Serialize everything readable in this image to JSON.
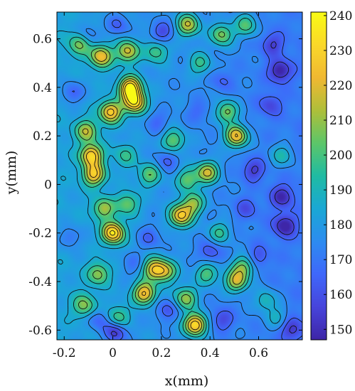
{
  "chart_data": {
    "type": "heatmap",
    "subtype": "filled-contour",
    "title": "",
    "xlabel": "x(mm)",
    "ylabel": "y(mm)",
    "xlim": [
      -0.23,
      0.78
    ],
    "ylim": [
      -0.64,
      0.71
    ],
    "xticks": [
      "-0.2",
      "0",
      "0.2",
      "0.4",
      "0.6"
    ],
    "xtick_values": [
      -0.2,
      0,
      0.2,
      0.4,
      0.6
    ],
    "yticks": [
      "0.6",
      "0.4",
      "0.2",
      "0",
      "-0.2",
      "-0.4",
      "-0.6"
    ],
    "ytick_values": [
      0.6,
      0.4,
      0.2,
      0,
      -0.2,
      -0.4,
      -0.6
    ],
    "colorbar": {
      "min": 147,
      "max": 241,
      "ticks": [
        "240",
        "230",
        "220",
        "210",
        "200",
        "190",
        "180",
        "170",
        "160",
        "150"
      ],
      "tick_values": [
        240,
        230,
        220,
        210,
        200,
        190,
        180,
        170,
        160,
        150
      ],
      "colormap": "parula"
    },
    "contour_levels": [
      155,
      165,
      175,
      185,
      195,
      205,
      215,
      225,
      235
    ],
    "baseline": 178,
    "peaks": [
      {
        "x": 0.07,
        "y": 0.4,
        "value": 240
      },
      {
        "x": 0.09,
        "y": 0.34,
        "value": 232
      },
      {
        "x": -0.01,
        "y": 0.3,
        "value": 228
      },
      {
        "x": -0.05,
        "y": 0.53,
        "value": 222
      },
      {
        "x": 0.06,
        "y": 0.55,
        "value": 218
      },
      {
        "x": -0.09,
        "y": 0.12,
        "value": 230
      },
      {
        "x": -0.08,
        "y": 0.04,
        "value": 224
      },
      {
        "x": -0.11,
        "y": 0.22,
        "value": 212
      },
      {
        "x": 0.0,
        "y": -0.2,
        "value": 236
      },
      {
        "x": -0.04,
        "y": -0.1,
        "value": 210
      },
      {
        "x": 0.13,
        "y": -0.45,
        "value": 228
      },
      {
        "x": 0.17,
        "y": -0.35,
        "value": 222
      },
      {
        "x": 0.22,
        "y": -0.36,
        "value": 210
      },
      {
        "x": 0.28,
        "y": -0.13,
        "value": 228
      },
      {
        "x": 0.33,
        "y": -0.08,
        "value": 212
      },
      {
        "x": 0.39,
        "y": 0.05,
        "value": 220
      },
      {
        "x": 0.31,
        "y": 0.02,
        "value": 206
      },
      {
        "x": 0.51,
        "y": 0.2,
        "value": 230
      },
      {
        "x": 0.47,
        "y": 0.3,
        "value": 212
      },
      {
        "x": 0.34,
        "y": -0.58,
        "value": 238
      },
      {
        "x": 0.3,
        "y": -0.47,
        "value": 212
      },
      {
        "x": 0.51,
        "y": -0.4,
        "value": 222
      },
      {
        "x": 0.54,
        "y": -0.34,
        "value": 210
      },
      {
        "x": 0.39,
        "y": -0.37,
        "value": 205
      },
      {
        "x": 0.25,
        "y": 0.18,
        "value": 206
      },
      {
        "x": 0.15,
        "y": 0.04,
        "value": 204
      },
      {
        "x": 0.06,
        "y": -0.08,
        "value": 205
      },
      {
        "x": 0.31,
        "y": 0.66,
        "value": 218
      },
      {
        "x": 0.45,
        "y": 0.62,
        "value": 212
      },
      {
        "x": 0.55,
        "y": 0.66,
        "value": 206
      },
      {
        "x": 0.18,
        "y": 0.55,
        "value": 202
      },
      {
        "x": 0.36,
        "y": 0.5,
        "value": 200
      },
      {
        "x": -0.14,
        "y": 0.58,
        "value": 205
      },
      {
        "x": -0.06,
        "y": -0.37,
        "value": 208
      },
      {
        "x": -0.12,
        "y": -0.5,
        "value": 206
      },
      {
        "x": 0.02,
        "y": -0.55,
        "value": 202
      },
      {
        "x": 0.44,
        "y": -0.2,
        "value": 200
      },
      {
        "x": 0.63,
        "y": -0.48,
        "value": 198
      },
      {
        "x": 0.7,
        "y": 0.12,
        "value": 198
      },
      {
        "x": 0.05,
        "y": 0.12,
        "value": 196
      },
      {
        "x": 0.68,
        "y": -0.55,
        "value": 194
      }
    ],
    "valleys": [
      {
        "x": 0.71,
        "y": -0.17,
        "value": 150
      },
      {
        "x": 0.7,
        "y": -0.05,
        "value": 154
      },
      {
        "x": 0.69,
        "y": 0.47,
        "value": 150
      },
      {
        "x": 0.65,
        "y": 0.33,
        "value": 162
      },
      {
        "x": 0.66,
        "y": 0.58,
        "value": 160
      },
      {
        "x": 0.74,
        "y": -0.6,
        "value": 158
      },
      {
        "x": 0.2,
        "y": 0.63,
        "value": 158
      },
      {
        "x": 0.02,
        "y": 0.66,
        "value": 162
      },
      {
        "x": -0.17,
        "y": 0.38,
        "value": 160
      },
      {
        "x": 0.18,
        "y": 0.26,
        "value": 166
      },
      {
        "x": 0.58,
        "y": 0.06,
        "value": 158
      },
      {
        "x": 0.55,
        "y": -0.1,
        "value": 164
      },
      {
        "x": 0.22,
        "y": 0.1,
        "value": 164
      },
      {
        "x": 0.15,
        "y": -0.22,
        "value": 164
      },
      {
        "x": 0.4,
        "y": -0.28,
        "value": 162
      },
      {
        "x": 0.01,
        "y": -0.61,
        "value": 150
      },
      {
        "x": -0.06,
        "y": -0.56,
        "value": 162
      },
      {
        "x": 0.22,
        "y": -0.52,
        "value": 162
      },
      {
        "x": 0.45,
        "y": -0.56,
        "value": 160
      },
      {
        "x": -0.18,
        "y": -0.22,
        "value": 164
      },
      {
        "x": 0.35,
        "y": 0.3,
        "value": 168
      },
      {
        "x": 0.45,
        "y": 0.43,
        "value": 168
      },
      {
        "x": -0.1,
        "y": 0.62,
        "value": 166
      },
      {
        "x": 0.6,
        "y": -0.3,
        "value": 164
      },
      {
        "x": 0.08,
        "y": -0.33,
        "value": 168
      }
    ]
  },
  "colors": {
    "background": "#ffffff",
    "axis": "#000000",
    "contour_line": "#111111",
    "colormap_stops": [
      "#3e26a8",
      "#4745dc",
      "#3f68fb",
      "#2d8cf0",
      "#1aa8d5",
      "#1fbba3",
      "#5cc66a",
      "#aebf3a",
      "#f0b832",
      "#fad82a",
      "#f9fb15"
    ]
  }
}
